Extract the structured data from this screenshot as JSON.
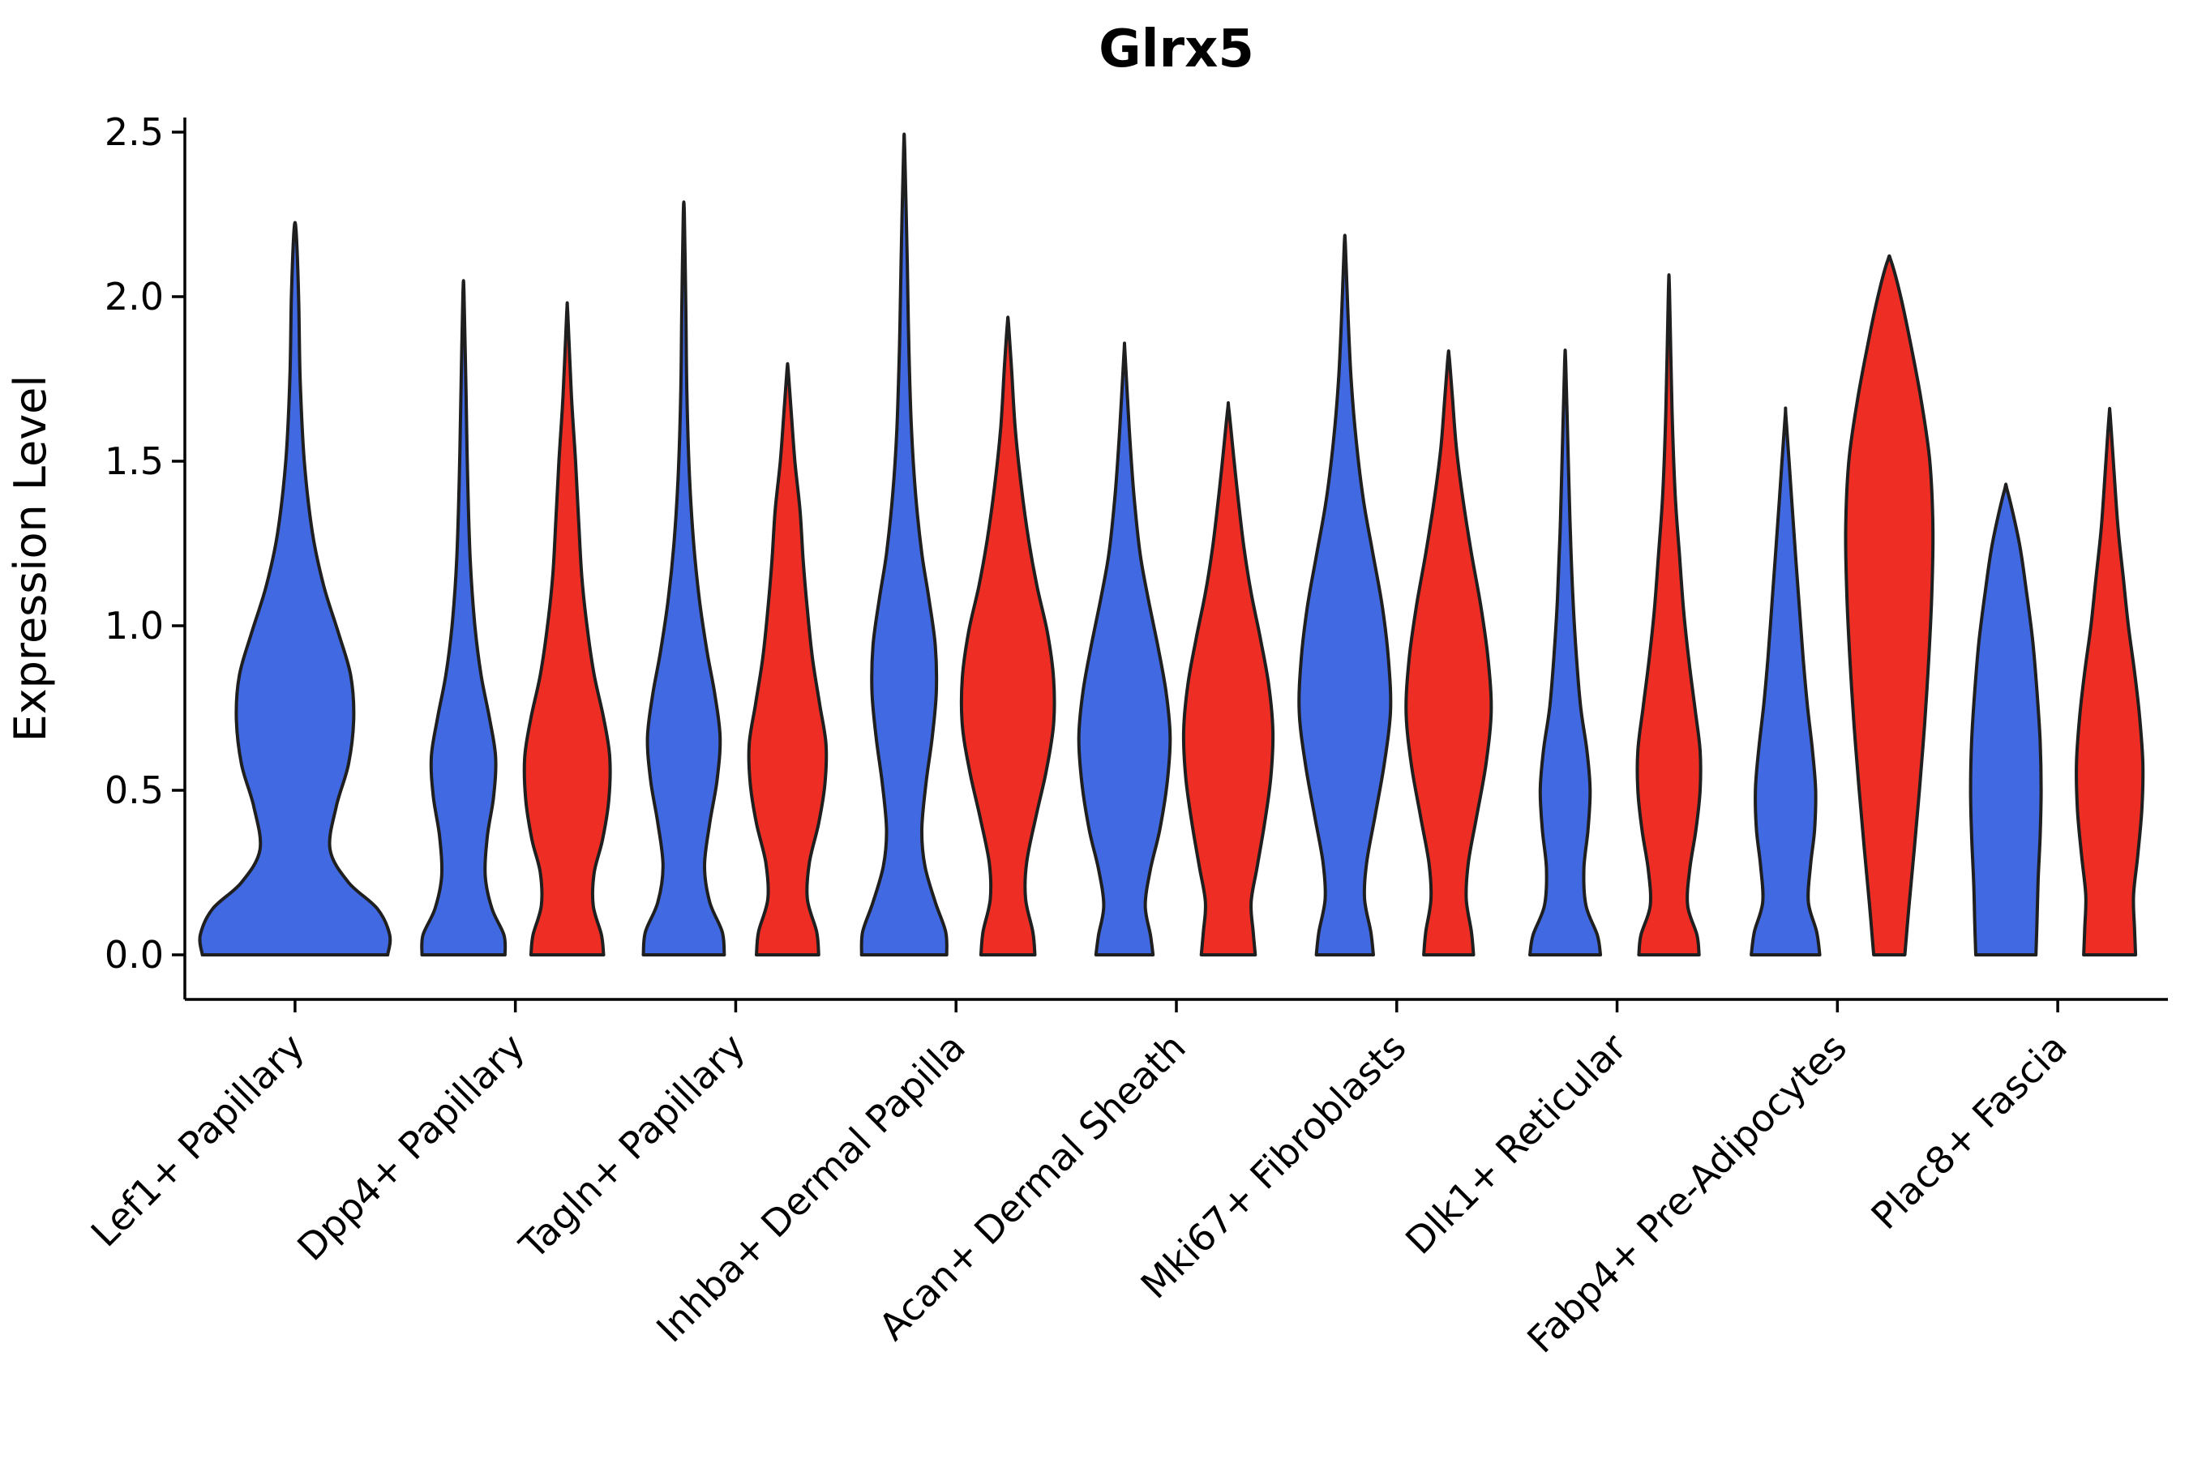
{
  "chart_data": {
    "type": "violin",
    "title": "Glrx5",
    "xlabel": "",
    "ylabel": "Expression Level",
    "ylim": [
      -0.135,
      2.55
    ],
    "yticks": [
      0.0,
      0.5,
      1.0,
      1.5,
      2.0,
      2.5
    ],
    "ytick_labels": [
      "0.0",
      "0.5",
      "1.0",
      "1.5",
      "2.0",
      "2.5"
    ],
    "legend": "none",
    "grid": false,
    "colors": {
      "blue": "#4169e1",
      "red": "#ee2e24",
      "outline": "#1f1f1f",
      "axis": "#000000",
      "background": "#ffffff"
    },
    "categories": [
      "Lef1+ Papillary",
      "Dpp4+ Papillary",
      "Tagln+ Papillary",
      "Inhba+ Dermal Papilla",
      "Acan+ Dermal Sheath",
      "Mki67+ Fibroblasts",
      "Dlk1+ Reticular",
      "Fabp4+ Pre-Adipocytes",
      "Plac8+ Fascia"
    ],
    "violins": [
      {
        "category_index": 0,
        "category": "Lef1+ Papillary",
        "color": "blue",
        "side": "single",
        "peak_expression": 2.2,
        "profile": [
          [
            0,
            0.9
          ],
          [
            0.06,
            0.92
          ],
          [
            0.14,
            0.8
          ],
          [
            0.22,
            0.52
          ],
          [
            0.32,
            0.34
          ],
          [
            0.45,
            0.4
          ],
          [
            0.58,
            0.52
          ],
          [
            0.72,
            0.57
          ],
          [
            0.85,
            0.54
          ],
          [
            0.98,
            0.42
          ],
          [
            1.12,
            0.28
          ],
          [
            1.28,
            0.17
          ],
          [
            1.5,
            0.09
          ],
          [
            1.75,
            0.05
          ],
          [
            2.0,
            0.035
          ],
          [
            2.2,
            0.01
          ]
        ]
      },
      {
        "category_index": 1,
        "category": "Dpp4+ Papillary",
        "color": "blue",
        "side": "left",
        "peak_expression": 2.01,
        "profile": [
          [
            0,
            0.8
          ],
          [
            0.06,
            0.78
          ],
          [
            0.14,
            0.55
          ],
          [
            0.24,
            0.42
          ],
          [
            0.36,
            0.46
          ],
          [
            0.48,
            0.58
          ],
          [
            0.6,
            0.62
          ],
          [
            0.72,
            0.5
          ],
          [
            0.85,
            0.34
          ],
          [
            1.0,
            0.22
          ],
          [
            1.2,
            0.13
          ],
          [
            1.45,
            0.08
          ],
          [
            1.7,
            0.05
          ],
          [
            2.01,
            0.01
          ]
        ]
      },
      {
        "category_index": 1,
        "category": "Dpp4+ Papillary",
        "color": "red",
        "side": "right",
        "peak_expression": 1.95,
        "profile": [
          [
            0,
            0.7
          ],
          [
            0.06,
            0.66
          ],
          [
            0.15,
            0.5
          ],
          [
            0.25,
            0.52
          ],
          [
            0.35,
            0.68
          ],
          [
            0.47,
            0.8
          ],
          [
            0.6,
            0.82
          ],
          [
            0.72,
            0.7
          ],
          [
            0.85,
            0.52
          ],
          [
            1.0,
            0.38
          ],
          [
            1.15,
            0.28
          ],
          [
            1.32,
            0.22
          ],
          [
            1.5,
            0.16
          ],
          [
            1.7,
            0.08
          ],
          [
            1.95,
            0.01
          ]
        ]
      },
      {
        "category_index": 2,
        "category": "Tagln+ Papillary",
        "color": "blue",
        "side": "left",
        "peak_expression": 2.25,
        "profile": [
          [
            0,
            0.78
          ],
          [
            0.07,
            0.74
          ],
          [
            0.16,
            0.5
          ],
          [
            0.27,
            0.4
          ],
          [
            0.4,
            0.5
          ],
          [
            0.53,
            0.64
          ],
          [
            0.66,
            0.7
          ],
          [
            0.79,
            0.6
          ],
          [
            0.92,
            0.45
          ],
          [
            1.08,
            0.3
          ],
          [
            1.25,
            0.19
          ],
          [
            1.45,
            0.11
          ],
          [
            1.7,
            0.06
          ],
          [
            1.95,
            0.04
          ],
          [
            2.25,
            0.01
          ]
        ]
      },
      {
        "category_index": 2,
        "category": "Tagln+ Papillary",
        "color": "red",
        "side": "right",
        "peak_expression": 1.78,
        "profile": [
          [
            0,
            0.6
          ],
          [
            0.07,
            0.56
          ],
          [
            0.17,
            0.38
          ],
          [
            0.28,
            0.42
          ],
          [
            0.4,
            0.6
          ],
          [
            0.52,
            0.72
          ],
          [
            0.64,
            0.74
          ],
          [
            0.76,
            0.62
          ],
          [
            0.9,
            0.48
          ],
          [
            1.05,
            0.38
          ],
          [
            1.2,
            0.3
          ],
          [
            1.35,
            0.24
          ],
          [
            1.5,
            0.14
          ],
          [
            1.65,
            0.07
          ],
          [
            1.78,
            0.01
          ]
        ]
      },
      {
        "category_index": 3,
        "category": "Inhba+ Dermal Papilla",
        "color": "blue",
        "side": "left",
        "peak_expression": 2.45,
        "profile": [
          [
            0,
            0.82
          ],
          [
            0.07,
            0.8
          ],
          [
            0.16,
            0.6
          ],
          [
            0.27,
            0.4
          ],
          [
            0.38,
            0.34
          ],
          [
            0.52,
            0.42
          ],
          [
            0.66,
            0.54
          ],
          [
            0.8,
            0.62
          ],
          [
            0.94,
            0.6
          ],
          [
            1.08,
            0.48
          ],
          [
            1.22,
            0.34
          ],
          [
            1.4,
            0.22
          ],
          [
            1.6,
            0.14
          ],
          [
            1.85,
            0.09
          ],
          [
            2.1,
            0.06
          ],
          [
            2.45,
            0.01
          ]
        ]
      },
      {
        "category_index": 3,
        "category": "Inhba+ Dermal Papilla",
        "color": "red",
        "side": "right",
        "peak_expression": 1.92,
        "profile": [
          [
            0,
            0.52
          ],
          [
            0.07,
            0.48
          ],
          [
            0.17,
            0.34
          ],
          [
            0.28,
            0.36
          ],
          [
            0.42,
            0.54
          ],
          [
            0.56,
            0.74
          ],
          [
            0.7,
            0.88
          ],
          [
            0.84,
            0.88
          ],
          [
            0.98,
            0.76
          ],
          [
            1.12,
            0.56
          ],
          [
            1.26,
            0.4
          ],
          [
            1.42,
            0.26
          ],
          [
            1.6,
            0.14
          ],
          [
            1.78,
            0.07
          ],
          [
            1.92,
            0.01
          ]
        ]
      },
      {
        "category_index": 4,
        "category": "Acan+ Dermal Sheath",
        "color": "blue",
        "side": "left",
        "peak_expression": 1.83,
        "profile": [
          [
            0,
            0.55
          ],
          [
            0.06,
            0.5
          ],
          [
            0.15,
            0.4
          ],
          [
            0.26,
            0.5
          ],
          [
            0.38,
            0.68
          ],
          [
            0.52,
            0.82
          ],
          [
            0.66,
            0.88
          ],
          [
            0.8,
            0.8
          ],
          [
            0.94,
            0.64
          ],
          [
            1.08,
            0.46
          ],
          [
            1.22,
            0.3
          ],
          [
            1.4,
            0.18
          ],
          [
            1.6,
            0.09
          ],
          [
            1.83,
            0.01
          ]
        ]
      },
      {
        "category_index": 4,
        "category": "Acan+ Dermal Sheath",
        "color": "red",
        "side": "right",
        "peak_expression": 1.66,
        "profile": [
          [
            0,
            0.52
          ],
          [
            0.07,
            0.48
          ],
          [
            0.16,
            0.44
          ],
          [
            0.27,
            0.56
          ],
          [
            0.4,
            0.7
          ],
          [
            0.54,
            0.82
          ],
          [
            0.68,
            0.86
          ],
          [
            0.82,
            0.78
          ],
          [
            0.96,
            0.62
          ],
          [
            1.1,
            0.44
          ],
          [
            1.24,
            0.3
          ],
          [
            1.4,
            0.18
          ],
          [
            1.52,
            0.1
          ],
          [
            1.66,
            0.01
          ]
        ]
      },
      {
        "category_index": 5,
        "category": "Mki67+ Fibroblasts",
        "color": "blue",
        "side": "left",
        "peak_expression": 2.16,
        "profile": [
          [
            0,
            0.55
          ],
          [
            0.07,
            0.5
          ],
          [
            0.17,
            0.38
          ],
          [
            0.28,
            0.42
          ],
          [
            0.42,
            0.58
          ],
          [
            0.58,
            0.76
          ],
          [
            0.74,
            0.88
          ],
          [
            0.9,
            0.84
          ],
          [
            1.06,
            0.72
          ],
          [
            1.22,
            0.54
          ],
          [
            1.38,
            0.36
          ],
          [
            1.56,
            0.22
          ],
          [
            1.75,
            0.12
          ],
          [
            1.95,
            0.06
          ],
          [
            2.16,
            0.01
          ]
        ]
      },
      {
        "category_index": 5,
        "category": "Mki67+ Fibroblasts",
        "color": "red",
        "side": "right",
        "peak_expression": 1.82,
        "profile": [
          [
            0,
            0.48
          ],
          [
            0.07,
            0.44
          ],
          [
            0.17,
            0.34
          ],
          [
            0.28,
            0.38
          ],
          [
            0.42,
            0.54
          ],
          [
            0.58,
            0.72
          ],
          [
            0.74,
            0.82
          ],
          [
            0.9,
            0.76
          ],
          [
            1.06,
            0.62
          ],
          [
            1.22,
            0.44
          ],
          [
            1.38,
            0.28
          ],
          [
            1.54,
            0.15
          ],
          [
            1.7,
            0.07
          ],
          [
            1.82,
            0.01
          ]
        ]
      },
      {
        "category_index": 6,
        "category": "Dlk1+ Reticular",
        "color": "blue",
        "side": "left",
        "peak_expression": 1.8,
        "profile": [
          [
            0,
            0.68
          ],
          [
            0.06,
            0.62
          ],
          [
            0.15,
            0.4
          ],
          [
            0.26,
            0.36
          ],
          [
            0.38,
            0.44
          ],
          [
            0.5,
            0.48
          ],
          [
            0.62,
            0.42
          ],
          [
            0.75,
            0.3
          ],
          [
            0.9,
            0.22
          ],
          [
            1.08,
            0.15
          ],
          [
            1.28,
            0.1
          ],
          [
            1.5,
            0.06
          ],
          [
            1.8,
            0.01
          ]
        ]
      },
      {
        "category_index": 6,
        "category": "Dlk1+ Reticular",
        "color": "red",
        "side": "right",
        "peak_expression": 2.02,
        "profile": [
          [
            0,
            0.58
          ],
          [
            0.06,
            0.54
          ],
          [
            0.15,
            0.36
          ],
          [
            0.26,
            0.4
          ],
          [
            0.38,
            0.52
          ],
          [
            0.5,
            0.6
          ],
          [
            0.62,
            0.6
          ],
          [
            0.75,
            0.5
          ],
          [
            0.9,
            0.38
          ],
          [
            1.05,
            0.28
          ],
          [
            1.22,
            0.2
          ],
          [
            1.4,
            0.12
          ],
          [
            1.65,
            0.06
          ],
          [
            2.02,
            0.01
          ]
        ]
      },
      {
        "category_index": 7,
        "category": "Fabp4+ Pre-Adipocytes",
        "color": "blue",
        "side": "left",
        "peak_expression": 1.63,
        "profile": [
          [
            0,
            0.66
          ],
          [
            0.07,
            0.6
          ],
          [
            0.16,
            0.44
          ],
          [
            0.27,
            0.48
          ],
          [
            0.38,
            0.56
          ],
          [
            0.5,
            0.58
          ],
          [
            0.62,
            0.52
          ],
          [
            0.76,
            0.42
          ],
          [
            0.9,
            0.34
          ],
          [
            1.05,
            0.27
          ],
          [
            1.2,
            0.2
          ],
          [
            1.38,
            0.12
          ],
          [
            1.63,
            0.01
          ]
        ]
      },
      {
        "category_index": 7,
        "category": "Fabp4+ Pre-Adipocytes",
        "color": "red",
        "side": "right",
        "peak_expression": 2.11,
        "profile": [
          [
            0,
            0.3
          ],
          [
            0.15,
            0.38
          ],
          [
            0.32,
            0.48
          ],
          [
            0.5,
            0.58
          ],
          [
            0.7,
            0.68
          ],
          [
            0.9,
            0.76
          ],
          [
            1.1,
            0.82
          ],
          [
            1.3,
            0.84
          ],
          [
            1.5,
            0.78
          ],
          [
            1.68,
            0.62
          ],
          [
            1.85,
            0.42
          ],
          [
            2.0,
            0.22
          ],
          [
            2.11,
            0.03
          ]
        ]
      },
      {
        "category_index": 8,
        "category": "Plac8+ Fascia",
        "color": "blue",
        "side": "left",
        "peak_expression": 1.41,
        "profile": [
          [
            0,
            0.58
          ],
          [
            0.1,
            0.6
          ],
          [
            0.22,
            0.62
          ],
          [
            0.36,
            0.66
          ],
          [
            0.5,
            0.68
          ],
          [
            0.65,
            0.66
          ],
          [
            0.8,
            0.6
          ],
          [
            0.95,
            0.52
          ],
          [
            1.1,
            0.4
          ],
          [
            1.25,
            0.26
          ],
          [
            1.41,
            0.03
          ]
        ]
      },
      {
        "category_index": 8,
        "category": "Plac8+ Fascia",
        "color": "red",
        "side": "right",
        "peak_expression": 1.64,
        "profile": [
          [
            0,
            0.5
          ],
          [
            0.08,
            0.48
          ],
          [
            0.18,
            0.46
          ],
          [
            0.3,
            0.54
          ],
          [
            0.44,
            0.62
          ],
          [
            0.58,
            0.64
          ],
          [
            0.72,
            0.58
          ],
          [
            0.86,
            0.48
          ],
          [
            1.0,
            0.36
          ],
          [
            1.15,
            0.26
          ],
          [
            1.3,
            0.16
          ],
          [
            1.48,
            0.08
          ],
          [
            1.64,
            0.01
          ]
        ]
      }
    ]
  }
}
